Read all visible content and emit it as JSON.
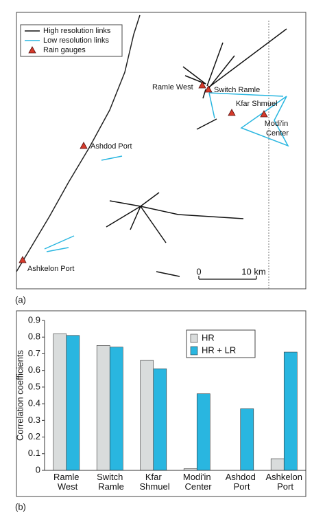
{
  "panel_a": {
    "label": "(a)",
    "legend": [
      "High resolution links",
      "Low resolution links",
      "Rain gauges"
    ],
    "gauges": [
      "Ramle West",
      "Switch Ramle",
      "Kfar Shmuel",
      "Modi'in Center",
      "Ashdod Port",
      "Ashkelon Port"
    ],
    "scale_labels": [
      "0",
      "10 km"
    ]
  },
  "chart_data": {
    "type": "bar",
    "label": "(b)",
    "y_label": "Correlation coefficients",
    "categories": [
      "Ramle West",
      "Switch Ramle",
      "Kfar Shmuel",
      "Modi'in Center",
      "Ashdod Port",
      "Ashkelon Port"
    ],
    "series": [
      {
        "name": "HR",
        "color": "#d9dcdc",
        "values": [
          0.82,
          0.75,
          0.66,
          0.01,
          null,
          0.07
        ]
      },
      {
        "name": "HR + LR",
        "color": "#29b6e0",
        "values": [
          0.81,
          0.74,
          0.61,
          0.46,
          0.37,
          0.71
        ]
      }
    ],
    "ylim": [
      0,
      0.9
    ],
    "yticks": [
      0,
      0.1,
      0.2,
      0.3,
      0.4,
      0.5,
      0.6,
      0.7,
      0.8,
      0.9
    ],
    "legend": "top-right"
  }
}
